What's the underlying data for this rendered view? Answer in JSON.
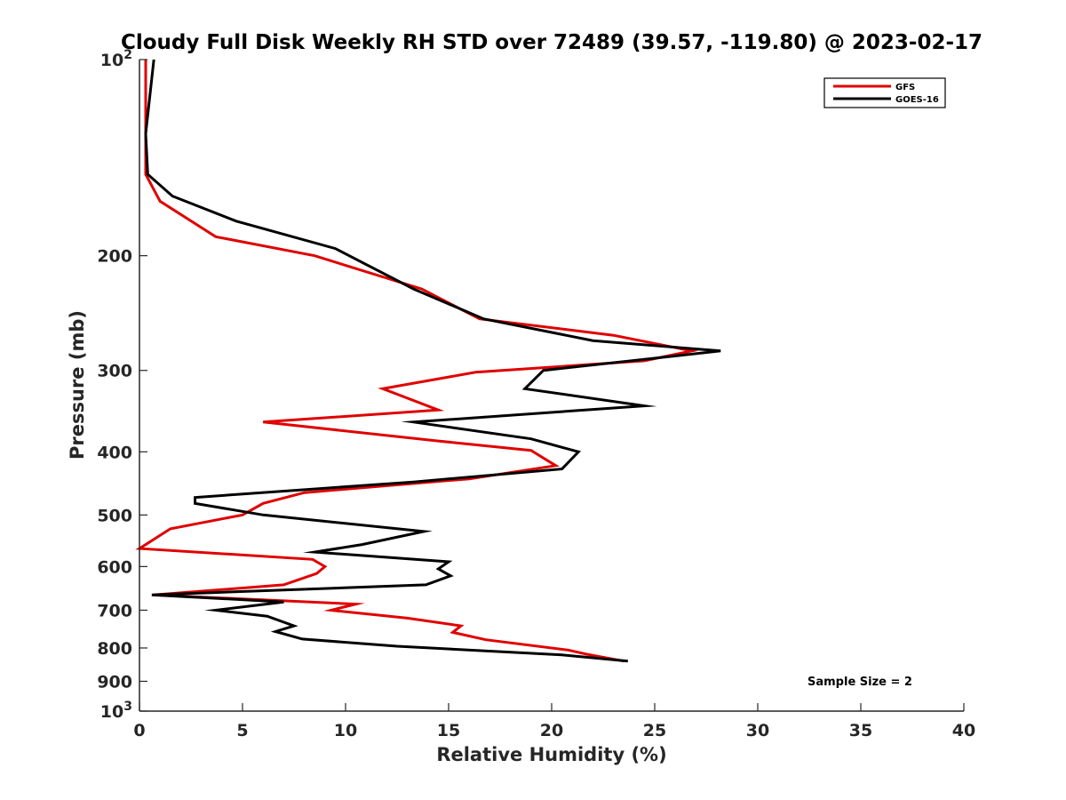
{
  "chart_data": {
    "type": "line",
    "title": "Cloudy Full Disk Weekly RH STD over 72489 (39.57, -119.80) @ 2023-02-17",
    "xlabel": "Relative Humidity (%)",
    "ylabel": "Pressure (mb)",
    "xlim": [
      0,
      40
    ],
    "ylim": [
      100,
      1000
    ],
    "y_scale": "log",
    "y_reversed": true,
    "grid": false,
    "legend_position": "top-right",
    "x_ticks": [
      "0",
      "5",
      "10",
      "15",
      "20",
      "25",
      "30",
      "35",
      "40"
    ],
    "y_ticks": [
      {
        "value": 100,
        "label": "10",
        "sup": "2"
      },
      {
        "value": 200,
        "label": "200",
        "sup": ""
      },
      {
        "value": 300,
        "label": "300",
        "sup": ""
      },
      {
        "value": 400,
        "label": "400",
        "sup": ""
      },
      {
        "value": 500,
        "label": "500",
        "sup": ""
      },
      {
        "value": 600,
        "label": "600",
        "sup": ""
      },
      {
        "value": 700,
        "label": "700",
        "sup": ""
      },
      {
        "value": 800,
        "label": "800",
        "sup": ""
      },
      {
        "value": 900,
        "label": "900",
        "sup": ""
      },
      {
        "value": 1000,
        "label": "10",
        "sup": "3"
      }
    ],
    "annotation": "Sample Size = 2",
    "series": [
      {
        "name": "GFS",
        "color": "#e00000",
        "points": [
          [
            0.3,
            100
          ],
          [
            0.3,
            150
          ],
          [
            1.0,
            165
          ],
          [
            3.7,
            187
          ],
          [
            8.5,
            200
          ],
          [
            13.7,
            225
          ],
          [
            16.5,
            250
          ],
          [
            23.0,
            265
          ],
          [
            26.8,
            280
          ],
          [
            24.5,
            290
          ],
          [
            16.3,
            302
          ],
          [
            11.8,
            320
          ],
          [
            14.5,
            345
          ],
          [
            6.0,
            360
          ],
          [
            14.5,
            385
          ],
          [
            19.0,
            398
          ],
          [
            20.2,
            420
          ],
          [
            16.0,
            440
          ],
          [
            8.0,
            462
          ],
          [
            6.0,
            480
          ],
          [
            5.0,
            500
          ],
          [
            1.5,
            525
          ],
          [
            0.0,
            563
          ],
          [
            8.4,
            585
          ],
          [
            9.0,
            600
          ],
          [
            8.6,
            615
          ],
          [
            7.0,
            640
          ],
          [
            0.7,
            663
          ],
          [
            10.5,
            685
          ],
          [
            9.3,
            700
          ],
          [
            13.0,
            720
          ],
          [
            15.6,
            740
          ],
          [
            15.2,
            757
          ],
          [
            16.8,
            777
          ],
          [
            20.8,
            806
          ],
          [
            21.7,
            818
          ],
          [
            23.5,
            838
          ]
        ]
      },
      {
        "name": "GOES-16",
        "color": "#000000",
        "points": [
          [
            0.7,
            100
          ],
          [
            0.3,
            130
          ],
          [
            0.4,
            150
          ],
          [
            1.6,
            162
          ],
          [
            4.7,
            177
          ],
          [
            9.5,
            195
          ],
          [
            13.3,
            225
          ],
          [
            16.7,
            250
          ],
          [
            22.0,
            270
          ],
          [
            28.2,
            280
          ],
          [
            19.6,
            300
          ],
          [
            18.7,
            320
          ],
          [
            24.5,
            340
          ],
          [
            13.3,
            360
          ],
          [
            19.0,
            382
          ],
          [
            21.3,
            400
          ],
          [
            20.5,
            425
          ],
          [
            13.3,
            445
          ],
          [
            2.7,
            470
          ],
          [
            2.7,
            480
          ],
          [
            6.0,
            500
          ],
          [
            13.8,
            530
          ],
          [
            10.8,
            555
          ],
          [
            8.5,
            570
          ],
          [
            15.0,
            590
          ],
          [
            14.5,
            605
          ],
          [
            15.1,
            620
          ],
          [
            13.9,
            640
          ],
          [
            0.6,
            663
          ],
          [
            7.0,
            680
          ],
          [
            3.7,
            700
          ],
          [
            6.2,
            715
          ],
          [
            7.5,
            740
          ],
          [
            6.6,
            755
          ],
          [
            7.9,
            775
          ],
          [
            12.5,
            795
          ],
          [
            20.5,
            820
          ],
          [
            23.7,
            838
          ]
        ]
      }
    ]
  }
}
